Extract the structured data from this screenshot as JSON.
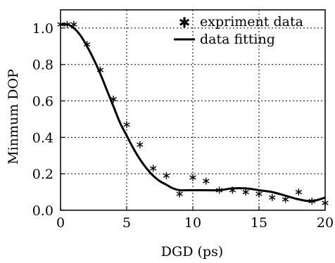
{
  "chart_data": {
    "type": "scatter",
    "xlabel": "DGD (ps)",
    "ylabel": "Minmum DOP",
    "xlim": [
      0,
      20
    ],
    "ylim": [
      0.0,
      1.1
    ],
    "xticks": [
      "0",
      "5",
      "10",
      "15",
      "20"
    ],
    "xtick_values": [
      0,
      5,
      10,
      15,
      20
    ],
    "yticks": [
      "0.0",
      "0.2",
      "0.4",
      "0.6",
      "0.8",
      "1.0"
    ],
    "ytick_values": [
      0.0,
      0.2,
      0.4,
      0.6,
      0.8,
      1.0
    ],
    "grid": true,
    "legend_position": "top-right",
    "series": [
      {
        "name": "expriment data",
        "kind": "markers",
        "marker": "asterisk",
        "x": [
          0,
          0.5,
          1,
          2,
          3,
          4,
          5,
          6,
          7,
          8,
          9,
          10,
          11,
          12,
          13,
          14,
          15,
          16,
          17,
          18,
          19,
          20
        ],
        "y": [
          1.02,
          1.02,
          1.02,
          0.91,
          0.77,
          0.61,
          0.47,
          0.36,
          0.23,
          0.19,
          0.09,
          0.18,
          0.16,
          0.11,
          0.11,
          0.1,
          0.09,
          0.07,
          0.06,
          0.1,
          0.05,
          0.04
        ]
      },
      {
        "name": "data fitting",
        "kind": "line",
        "x": [
          0,
          0.5,
          1,
          1.5,
          2,
          2.5,
          3,
          3.5,
          4,
          4.5,
          5,
          5.5,
          6,
          6.5,
          7,
          7.5,
          8,
          8.5,
          9,
          9.5,
          10,
          11,
          12,
          13,
          14,
          15,
          16,
          17,
          18,
          19,
          20
        ],
        "y": [
          1.02,
          1.02,
          1.0,
          0.96,
          0.9,
          0.83,
          0.75,
          0.66,
          0.57,
          0.48,
          0.41,
          0.34,
          0.28,
          0.23,
          0.19,
          0.16,
          0.14,
          0.12,
          0.11,
          0.11,
          0.11,
          0.11,
          0.11,
          0.12,
          0.12,
          0.11,
          0.1,
          0.08,
          0.06,
          0.05,
          0.07
        ]
      }
    ]
  }
}
